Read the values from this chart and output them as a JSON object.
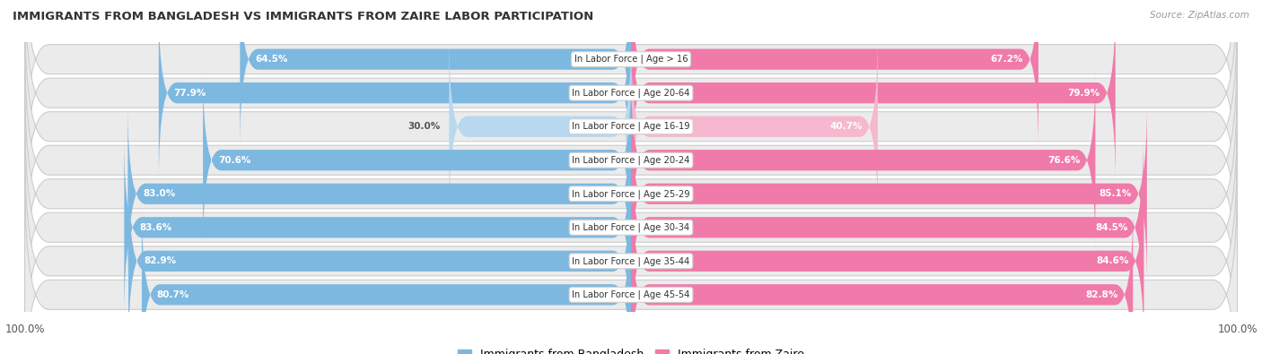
{
  "title": "IMMIGRANTS FROM BANGLADESH VS IMMIGRANTS FROM ZAIRE LABOR PARTICIPATION",
  "source": "Source: ZipAtlas.com",
  "categories": [
    "In Labor Force | Age > 16",
    "In Labor Force | Age 20-64",
    "In Labor Force | Age 16-19",
    "In Labor Force | Age 20-24",
    "In Labor Force | Age 25-29",
    "In Labor Force | Age 30-34",
    "In Labor Force | Age 35-44",
    "In Labor Force | Age 45-54"
  ],
  "bangladesh_values": [
    64.5,
    77.9,
    30.0,
    70.6,
    83.0,
    83.6,
    82.9,
    80.7
  ],
  "zaire_values": [
    67.2,
    79.9,
    40.7,
    76.6,
    85.1,
    84.5,
    84.6,
    82.8
  ],
  "bangladesh_color": "#7db8e0",
  "bangladesh_color_light": "#b8d8ef",
  "zaire_color": "#f07aaa",
  "zaire_color_light": "#f5b8cf",
  "row_bg_color": "#ebebeb",
  "legend_bangladesh": "Immigrants from Bangladesh",
  "legend_zaire": "Immigrants from Zaire"
}
